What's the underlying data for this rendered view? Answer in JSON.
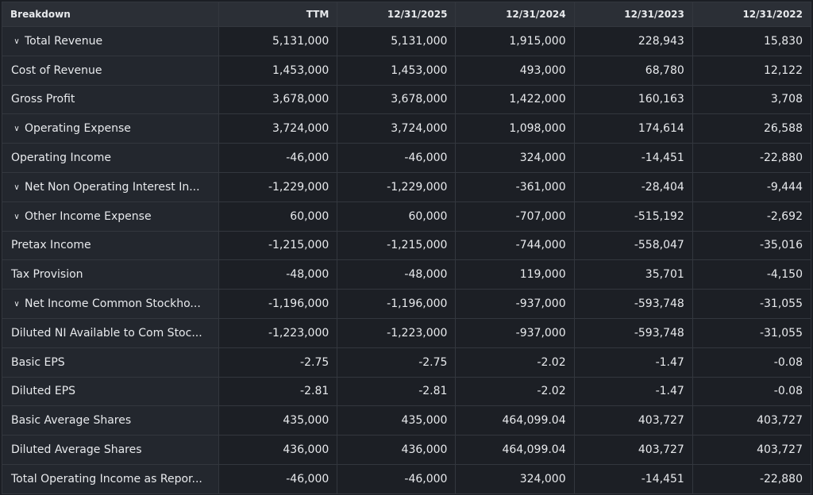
{
  "header": {
    "breakdown": "Breakdown",
    "columns": [
      "TTM",
      "12/31/2025",
      "12/31/2024",
      "12/31/2023",
      "12/31/2022"
    ]
  },
  "icons": {
    "expand": "chevron-down-icon"
  },
  "rows": [
    {
      "label": "Total Revenue",
      "expandable": true,
      "values": [
        "5,131,000",
        "5,131,000",
        "1,915,000",
        "228,943",
        "15,830"
      ]
    },
    {
      "label": "Cost of Revenue",
      "expandable": false,
      "values": [
        "1,453,000",
        "1,453,000",
        "493,000",
        "68,780",
        "12,122"
      ]
    },
    {
      "label": "Gross Profit",
      "expandable": false,
      "values": [
        "3,678,000",
        "3,678,000",
        "1,422,000",
        "160,163",
        "3,708"
      ]
    },
    {
      "label": "Operating Expense",
      "expandable": true,
      "values": [
        "3,724,000",
        "3,724,000",
        "1,098,000",
        "174,614",
        "26,588"
      ]
    },
    {
      "label": "Operating Income",
      "expandable": false,
      "values": [
        "-46,000",
        "-46,000",
        "324,000",
        "-14,451",
        "-22,880"
      ]
    },
    {
      "label": "Net Non Operating Interest In...",
      "expandable": true,
      "values": [
        "-1,229,000",
        "-1,229,000",
        "-361,000",
        "-28,404",
        "-9,444"
      ]
    },
    {
      "label": "Other Income Expense",
      "expandable": true,
      "values": [
        "60,000",
        "60,000",
        "-707,000",
        "-515,192",
        "-2,692"
      ]
    },
    {
      "label": "Pretax Income",
      "expandable": false,
      "values": [
        "-1,215,000",
        "-1,215,000",
        "-744,000",
        "-558,047",
        "-35,016"
      ]
    },
    {
      "label": "Tax Provision",
      "expandable": false,
      "values": [
        "-48,000",
        "-48,000",
        "119,000",
        "35,701",
        "-4,150"
      ]
    },
    {
      "label": "Net Income Common Stockho...",
      "expandable": true,
      "values": [
        "-1,196,000",
        "-1,196,000",
        "-937,000",
        "-593,748",
        "-31,055"
      ]
    },
    {
      "label": "Diluted NI Available to Com Stoc...",
      "expandable": false,
      "values": [
        "-1,223,000",
        "-1,223,000",
        "-937,000",
        "-593,748",
        "-31,055"
      ]
    },
    {
      "label": "Basic EPS",
      "expandable": false,
      "values": [
        "-2.75",
        "-2.75",
        "-2.02",
        "-1.47",
        "-0.08"
      ]
    },
    {
      "label": "Diluted EPS",
      "expandable": false,
      "values": [
        "-2.81",
        "-2.81",
        "-2.02",
        "-1.47",
        "-0.08"
      ]
    },
    {
      "label": "Basic Average Shares",
      "expandable": false,
      "values": [
        "435,000",
        "435,000",
        "464,099.04",
        "403,727",
        "403,727"
      ]
    },
    {
      "label": "Diluted Average Shares",
      "expandable": false,
      "values": [
        "436,000",
        "436,000",
        "464,099.04",
        "403,727",
        "403,727"
      ]
    },
    {
      "label": "Total Operating Income as Repor...",
      "expandable": false,
      "values": [
        "-46,000",
        "-46,000",
        "324,000",
        "-14,451",
        "-22,880"
      ]
    }
  ]
}
